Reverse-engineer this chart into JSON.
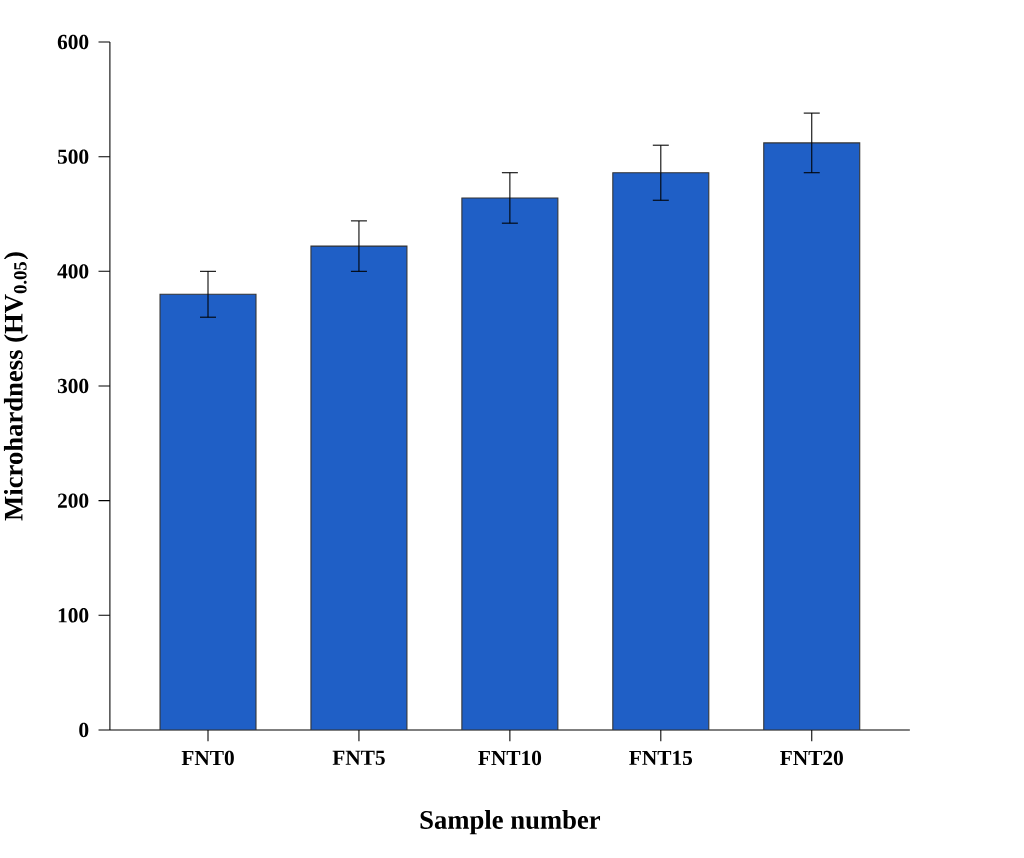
{
  "chart_data": {
    "type": "bar",
    "xlabel": "Sample number",
    "ylabel": "Microhardness (HV$_{0.05}$)",
    "categories": [
      "FNT0",
      "FNT5",
      "FNT10",
      "FNT15",
      "FNT20"
    ],
    "values": [
      380,
      422,
      464,
      486,
      512
    ],
    "errors": [
      20,
      22,
      22,
      24,
      26
    ],
    "color": "#1f5fc6",
    "ylim": [
      0,
      600
    ],
    "yticks": [
      0,
      100,
      200,
      300,
      400,
      500,
      600
    ]
  }
}
